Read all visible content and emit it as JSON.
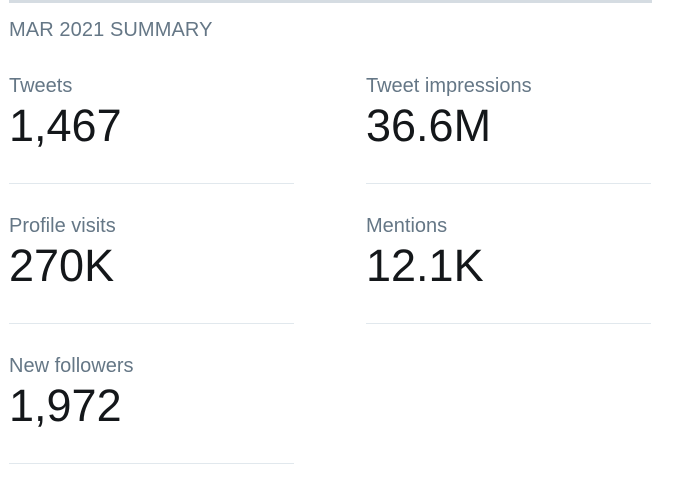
{
  "summary": {
    "title": "MAR 2021 SUMMARY"
  },
  "stats": {
    "tweets": {
      "label": "Tweets",
      "value": "1,467"
    },
    "impressions": {
      "label": "Tweet impressions",
      "value": "36.6M"
    },
    "profile_visits": {
      "label": "Profile visits",
      "value": "270K"
    },
    "mentions": {
      "label": "Mentions",
      "value": "12.1K"
    },
    "new_followers": {
      "label": "New followers",
      "value": "1,972"
    }
  },
  "colors": {
    "label": "#657786",
    "value": "#14171a",
    "divider": "#e1e8ed",
    "top_rule": "#d5dce2"
  }
}
